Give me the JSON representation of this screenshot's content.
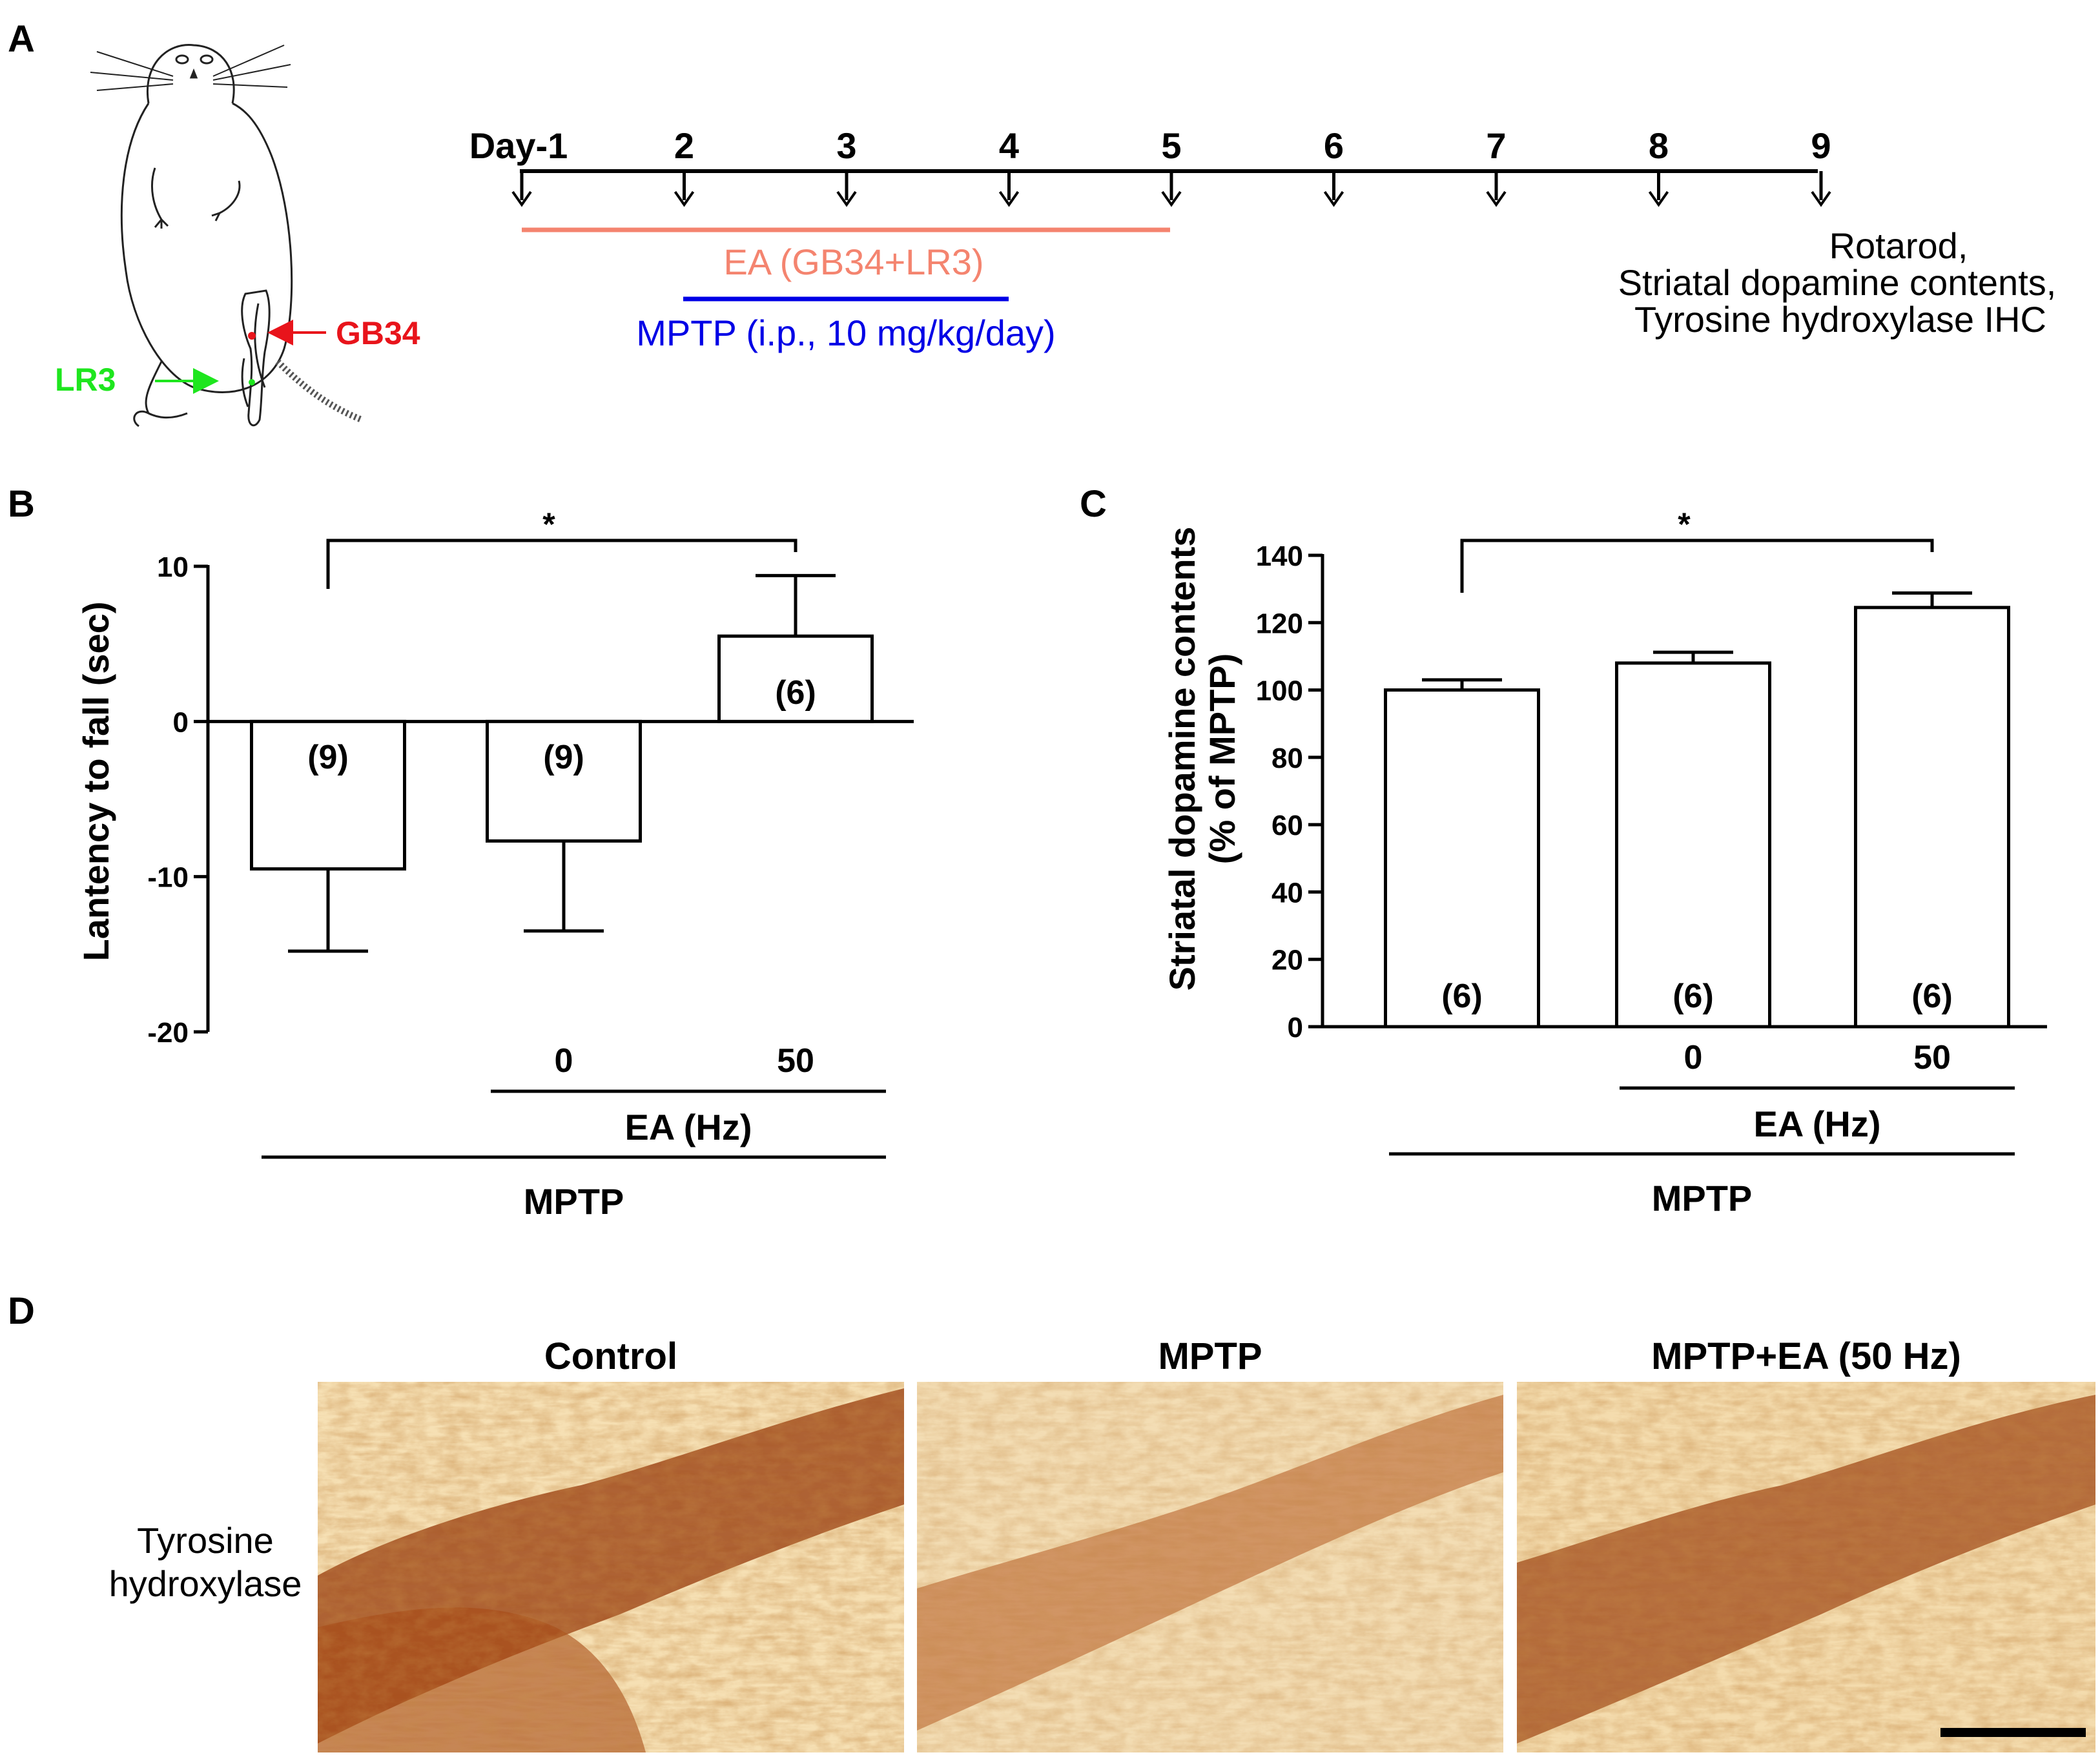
{
  "colors": {
    "ink": "#000000",
    "ea": "#f4846f",
    "mptp": "#0000e6",
    "gb34": "#e8141b",
    "lr3": "#1ee61e",
    "stain_dark": "#7a2a08",
    "stain_mid": "#b8652a",
    "stain_light": "#f3d9a8"
  },
  "panel_labels": {
    "a": "A",
    "b": "B",
    "c": "C",
    "d": "D"
  },
  "panel_a": {
    "mouse_illustration": "mouse-standing-illustration",
    "gb34_label": "GB34",
    "lr3_label": "LR3",
    "timeline": {
      "days": [
        "Day-1",
        "2",
        "3",
        "4",
        "5",
        "6",
        "7",
        "8",
        "9"
      ],
      "ea_label": "EA  (GB34+LR3)",
      "mptp_label": "MPTP (i.p., 10 mg/kg/day)",
      "endpoint_lines": [
        "Rotarod,",
        "Striatal dopamine contents,",
        "Tyrosine hydroxylase IHC"
      ]
    }
  },
  "chart_data": [
    {
      "type": "bar",
      "panel": "B",
      "ylabel": "Lantency to fall (sec)",
      "ylim": [
        -20,
        10
      ],
      "yticks": [
        -20,
        -10,
        0,
        10
      ],
      "categories": [
        "MPTP",
        "MPTP + EA 0 Hz",
        "MPTP + EA 50 Hz"
      ],
      "values": [
        -9.5,
        -7.7,
        5.5
      ],
      "errors": [
        5.3,
        5.8,
        3.9
      ],
      "n_labels": [
        "(9)",
        "(9)",
        "(6)"
      ],
      "significance": {
        "between": [
          0,
          2
        ],
        "label": "*"
      },
      "x_group_labels": {
        "ea_values": [
          "0",
          "50"
        ],
        "ea_axis": "EA (Hz)",
        "mptp_axis": "MPTP"
      }
    },
    {
      "type": "bar",
      "panel": "C",
      "ylabel_lines": [
        "Striatal dopamine contents",
        "(% of MPTP)"
      ],
      "ylim": [
        0,
        140
      ],
      "yticks": [
        0,
        20,
        40,
        60,
        80,
        100,
        120,
        140
      ],
      "categories": [
        "MPTP",
        "MPTP + EA 0 Hz",
        "MPTP + EA 50 Hz"
      ],
      "values": [
        100,
        108,
        124.5
      ],
      "errors": [
        3,
        3.2,
        4.3
      ],
      "n_labels": [
        "(6)",
        "(6)",
        "(6)"
      ],
      "significance": {
        "between": [
          0,
          2
        ],
        "label": "*"
      },
      "x_group_labels": {
        "ea_values": [
          "0",
          "50"
        ],
        "ea_axis": "EA (Hz)",
        "mptp_axis": "MPTP"
      }
    }
  ],
  "panel_d": {
    "row_label_lines": [
      "Tyrosine",
      "hydroxylase"
    ],
    "columns": [
      "Control",
      "MPTP",
      "MPTP+EA (50 Hz)"
    ]
  }
}
